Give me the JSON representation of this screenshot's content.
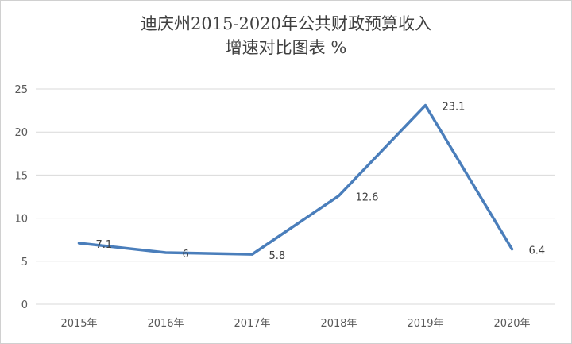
{
  "chart_data": {
    "type": "line",
    "title_lines": [
      "迪庆州2015-2020年公共财政预算收入",
      "增速对比图表   %"
    ],
    "categories": [
      "2015年",
      "2016年",
      "2017年",
      "2018年",
      "2019年",
      "2020年"
    ],
    "series": [
      {
        "values": [
          7.1,
          6,
          5.8,
          12.6,
          23.1,
          6.4
        ],
        "value_labels": [
          "7.1",
          "6",
          "5.8",
          "12.6",
          "23.1",
          "6.4"
        ],
        "color": "#4a7ebb"
      }
    ],
    "ylim": [
      0,
      25
    ],
    "yticks": [
      "0",
      "5",
      "10",
      "15",
      "20",
      "25"
    ],
    "grid": true,
    "gridline_color": "#d9d9d9"
  }
}
